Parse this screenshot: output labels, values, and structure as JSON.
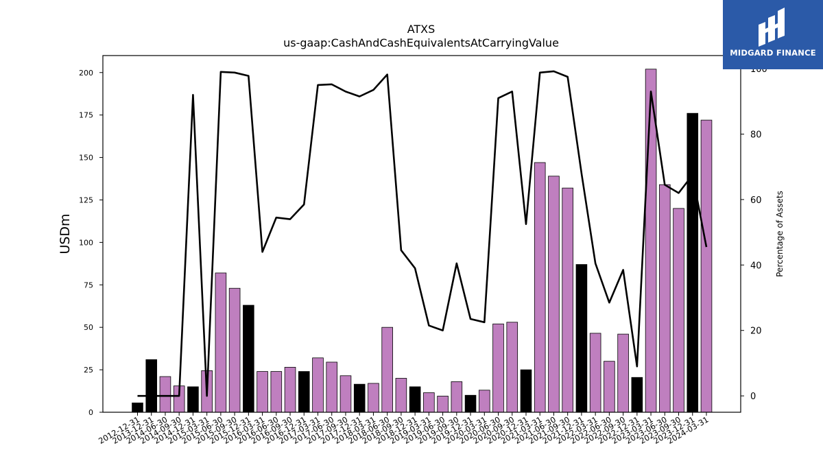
{
  "chart_data": {
    "type": "bar+line",
    "title": "ATXS",
    "subtitle": "us-gaap:CashAndCashEquivalentsAtCarryingValue",
    "ylabel_left": "USDm",
    "ylabel_right": "Percentage of Assets",
    "ylim_left": [
      0,
      210
    ],
    "ylim_right": [
      -5,
      104
    ],
    "yticks_left": [
      0,
      25,
      50,
      75,
      100,
      125,
      150,
      175,
      200
    ],
    "yticks_right": [
      0,
      20,
      40,
      60,
      80,
      100
    ],
    "categories": [
      "2012-12-31",
      "2013-12-31",
      "2014-06-30",
      "2014-09-30",
      "2014-12-31",
      "2015-03-31",
      "2015-06-30",
      "2015-09-30",
      "2015-12-31",
      "2016-03-31",
      "2016-06-30",
      "2016-09-30",
      "2016-12-31",
      "2017-03-31",
      "2017-06-30",
      "2017-09-30",
      "2017-12-31",
      "2018-03-31",
      "2018-06-30",
      "2018-09-30",
      "2018-12-31",
      "2019-03-31",
      "2019-06-30",
      "2019-09-30",
      "2019-12-31",
      "2020-03-31",
      "2020-06-30",
      "2020-09-30",
      "2020-12-31",
      "2021-03-31",
      "2021-06-30",
      "2021-09-30",
      "2021-12-31",
      "2022-03-31",
      "2022-06-30",
      "2022-09-30",
      "2022-12-31",
      "2023-03-31",
      "2023-06-30",
      "2023-09-30",
      "2023-12-31",
      "2024-03-31"
    ],
    "bars": {
      "name": "USDm",
      "values": [
        5.5,
        31,
        21,
        15.5,
        15,
        24.5,
        82,
        73,
        63,
        24,
        24,
        26.5,
        24,
        32,
        29.5,
        21.5,
        16.5,
        17,
        50,
        20,
        15,
        11.5,
        9.5,
        18,
        10,
        13,
        52,
        53,
        25,
        147,
        139,
        132,
        87,
        46.5,
        30,
        46,
        20.5,
        202,
        134,
        120,
        176,
        172
      ],
      "year_end": [
        true,
        true,
        false,
        false,
        true,
        false,
        false,
        false,
        true,
        false,
        false,
        false,
        true,
        false,
        false,
        false,
        true,
        false,
        false,
        false,
        true,
        false,
        false,
        false,
        true,
        false,
        false,
        false,
        true,
        false,
        false,
        false,
        true,
        false,
        false,
        false,
        true,
        false,
        false,
        false,
        true,
        false
      ],
      "color_quarter": "#bf7fbf",
      "color_year_end": "#000000"
    },
    "line": {
      "name": "Percentage of Assets",
      "values": [
        0,
        0,
        0,
        0,
        92,
        0,
        99,
        98.8,
        97.8,
        44,
        54.5,
        54,
        58.5,
        95,
        95.2,
        93,
        91.5,
        93.5,
        98.2,
        44.5,
        39,
        21.5,
        20,
        40.5,
        23.5,
        22.5,
        91,
        93,
        52.5,
        98.8,
        99.2,
        97.5,
        68,
        40.5,
        28.5,
        38.5,
        9,
        93,
        64.5,
        62,
        67.5,
        45.5
      ],
      "color": "#000000"
    }
  },
  "logo": {
    "text": "MIDGARD FINANCE",
    "bg_color": "#2b5aa8"
  }
}
